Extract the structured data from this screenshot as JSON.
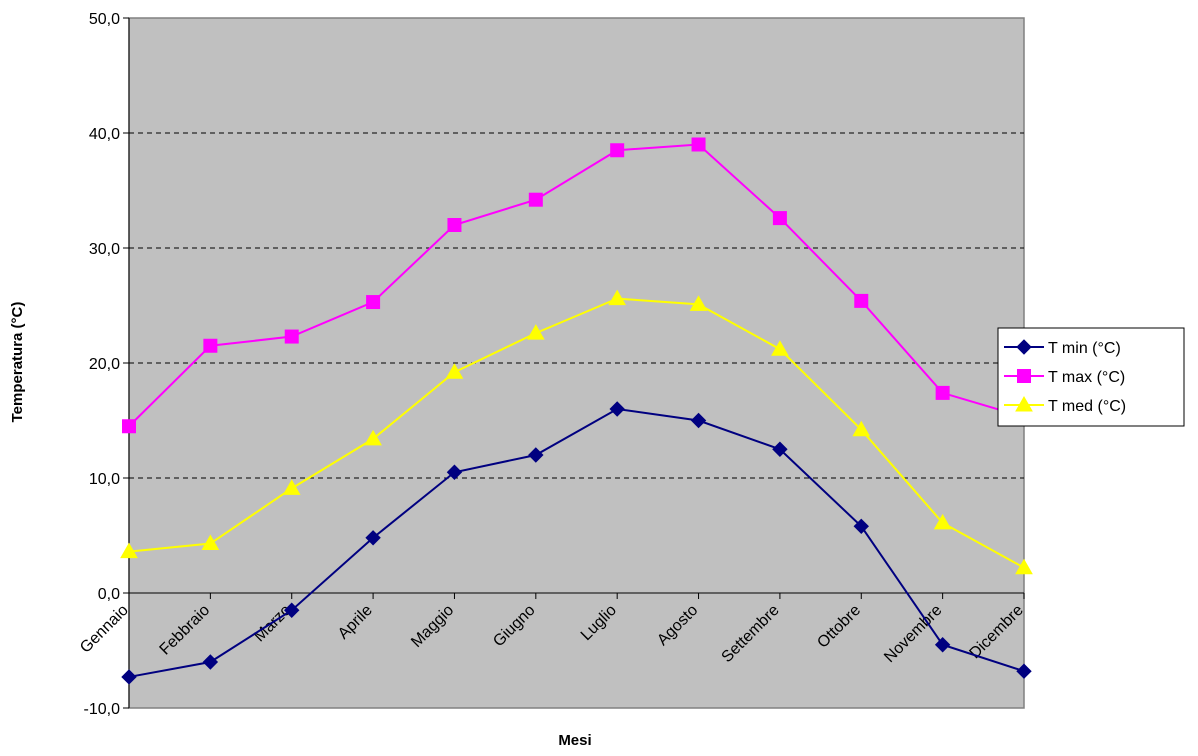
{
  "chart_data": {
    "type": "line",
    "title": "",
    "xlabel": "Mesi",
    "ylabel": "Temperatura (°C)",
    "ylim": [
      -10,
      50
    ],
    "yticks": [
      "-10,0",
      "0,0",
      "10,0",
      "20,0",
      "30,0",
      "40,0",
      "50,0"
    ],
    "grid": "horizontal dashed",
    "legend_position": "right",
    "plot_background": "#C0C0C0",
    "categories": [
      "Gennaio",
      "Febbraio",
      "Marzo",
      "Aprile",
      "Maggio",
      "Giugno",
      "Luglio",
      "Agosto",
      "Settembre",
      "Ottobre",
      "Novembre",
      "Dicembre"
    ],
    "series": [
      {
        "name": "T min (°C)",
        "color": "#000080",
        "marker": "diamond",
        "values": [
          -7.3,
          -6.0,
          -1.5,
          4.8,
          10.5,
          12.0,
          16.0,
          15.0,
          12.5,
          5.8,
          -4.5,
          -6.8
        ]
      },
      {
        "name": "T max  (°C)",
        "color": "#FF00FF",
        "marker": "square",
        "values": [
          14.5,
          21.5,
          22.3,
          25.3,
          32.0,
          34.2,
          38.5,
          39.0,
          32.6,
          25.4,
          17.4,
          15.3
        ]
      },
      {
        "name": "T med   (°C)",
        "color": "#FFFF00",
        "marker": "triangle",
        "values": [
          3.6,
          4.3,
          9.1,
          13.4,
          19.2,
          22.6,
          25.6,
          25.1,
          21.2,
          14.2,
          6.1,
          2.2
        ]
      }
    ]
  }
}
